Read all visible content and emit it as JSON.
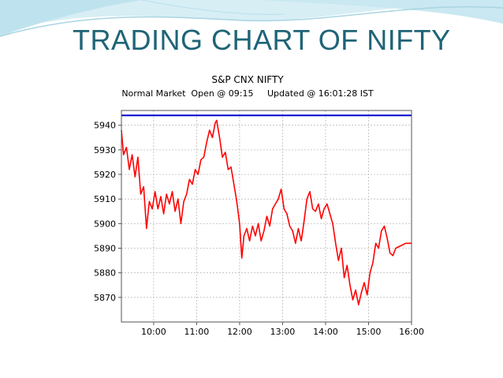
{
  "slide": {
    "title": "TRADING CHART OF NIFTY"
  },
  "chart_data": {
    "type": "line",
    "title": "S&P CNX NIFTY",
    "subtitle": "Normal Market  Open @ 09:15     Updated @ 16:01:28 IST",
    "xlim": [
      "09:15",
      "16:00"
    ],
    "ylim": [
      5860,
      5946
    ],
    "x_ticks": [
      "10:00",
      "11:00",
      "12:00",
      "13:00",
      "14:00",
      "15:00",
      "16:00"
    ],
    "y_ticks": [
      5870,
      5880,
      5890,
      5900,
      5910,
      5920,
      5930,
      5940
    ],
    "grid": true,
    "series": [
      {
        "color": "#ff0000",
        "points": [
          [
            "09:15",
            5938
          ],
          [
            "09:18",
            5928
          ],
          [
            "09:22",
            5931
          ],
          [
            "09:26",
            5922
          ],
          [
            "09:30",
            5928
          ],
          [
            "09:34",
            5919
          ],
          [
            "09:38",
            5927
          ],
          [
            "09:42",
            5912
          ],
          [
            "09:46",
            5915
          ],
          [
            "09:50",
            5898
          ],
          [
            "09:54",
            5909
          ],
          [
            "09:58",
            5906
          ],
          [
            "10:02",
            5913
          ],
          [
            "10:06",
            5906
          ],
          [
            "10:10",
            5911
          ],
          [
            "10:14",
            5904
          ],
          [
            "10:18",
            5912
          ],
          [
            "10:22",
            5908
          ],
          [
            "10:26",
            5913
          ],
          [
            "10:30",
            5905
          ],
          [
            "10:34",
            5910
          ],
          [
            "10:38",
            5900
          ],
          [
            "10:42",
            5909
          ],
          [
            "10:46",
            5912
          ],
          [
            "10:50",
            5918
          ],
          [
            "10:54",
            5916
          ],
          [
            "10:58",
            5922
          ],
          [
            "11:02",
            5920
          ],
          [
            "11:06",
            5926
          ],
          [
            "11:10",
            5927
          ],
          [
            "11:14",
            5933
          ],
          [
            "11:18",
            5938
          ],
          [
            "11:22",
            5935
          ],
          [
            "11:26",
            5941
          ],
          [
            "11:28",
            5942
          ],
          [
            "11:32",
            5935
          ],
          [
            "11:36",
            5927
          ],
          [
            "11:40",
            5929
          ],
          [
            "11:44",
            5922
          ],
          [
            "11:48",
            5923
          ],
          [
            "11:52",
            5916
          ],
          [
            "11:56",
            5909
          ],
          [
            "12:00",
            5900
          ],
          [
            "12:03",
            5886
          ],
          [
            "12:06",
            5895
          ],
          [
            "12:10",
            5898
          ],
          [
            "12:14",
            5893
          ],
          [
            "12:18",
            5899
          ],
          [
            "12:22",
            5895
          ],
          [
            "12:26",
            5900
          ],
          [
            "12:30",
            5893
          ],
          [
            "12:34",
            5897
          ],
          [
            "12:38",
            5903
          ],
          [
            "12:42",
            5899
          ],
          [
            "12:46",
            5906
          ],
          [
            "12:50",
            5908
          ],
          [
            "12:54",
            5910
          ],
          [
            "12:58",
            5914
          ],
          [
            "13:02",
            5906
          ],
          [
            "13:06",
            5904
          ],
          [
            "13:10",
            5899
          ],
          [
            "13:14",
            5897
          ],
          [
            "13:18",
            5892
          ],
          [
            "13:22",
            5898
          ],
          [
            "13:26",
            5893
          ],
          [
            "13:30",
            5901
          ],
          [
            "13:34",
            5910
          ],
          [
            "13:38",
            5913
          ],
          [
            "13:42",
            5906
          ],
          [
            "13:46",
            5905
          ],
          [
            "13:50",
            5908
          ],
          [
            "13:54",
            5902
          ],
          [
            "13:58",
            5906
          ],
          [
            "14:02",
            5908
          ],
          [
            "14:06",
            5904
          ],
          [
            "14:10",
            5900
          ],
          [
            "14:14",
            5892
          ],
          [
            "14:18",
            5885
          ],
          [
            "14:22",
            5890
          ],
          [
            "14:26",
            5878
          ],
          [
            "14:30",
            5883
          ],
          [
            "14:34",
            5875
          ],
          [
            "14:38",
            5869
          ],
          [
            "14:42",
            5873
          ],
          [
            "14:46",
            5867
          ],
          [
            "14:50",
            5872
          ],
          [
            "14:54",
            5876
          ],
          [
            "14:58",
            5871
          ],
          [
            "15:02",
            5880
          ],
          [
            "15:06",
            5884
          ],
          [
            "15:10",
            5892
          ],
          [
            "15:14",
            5890
          ],
          [
            "15:18",
            5897
          ],
          [
            "15:22",
            5899
          ],
          [
            "15:26",
            5894
          ],
          [
            "15:30",
            5888
          ],
          [
            "15:34",
            5887
          ],
          [
            "15:38",
            5890
          ],
          [
            "15:45",
            5891
          ],
          [
            "15:52",
            5892
          ],
          [
            "16:00",
            5892
          ]
        ]
      },
      {
        "color": "#0000cc",
        "points": [
          [
            "09:15",
            5944
          ],
          [
            "16:00",
            5944
          ]
        ]
      }
    ]
  }
}
